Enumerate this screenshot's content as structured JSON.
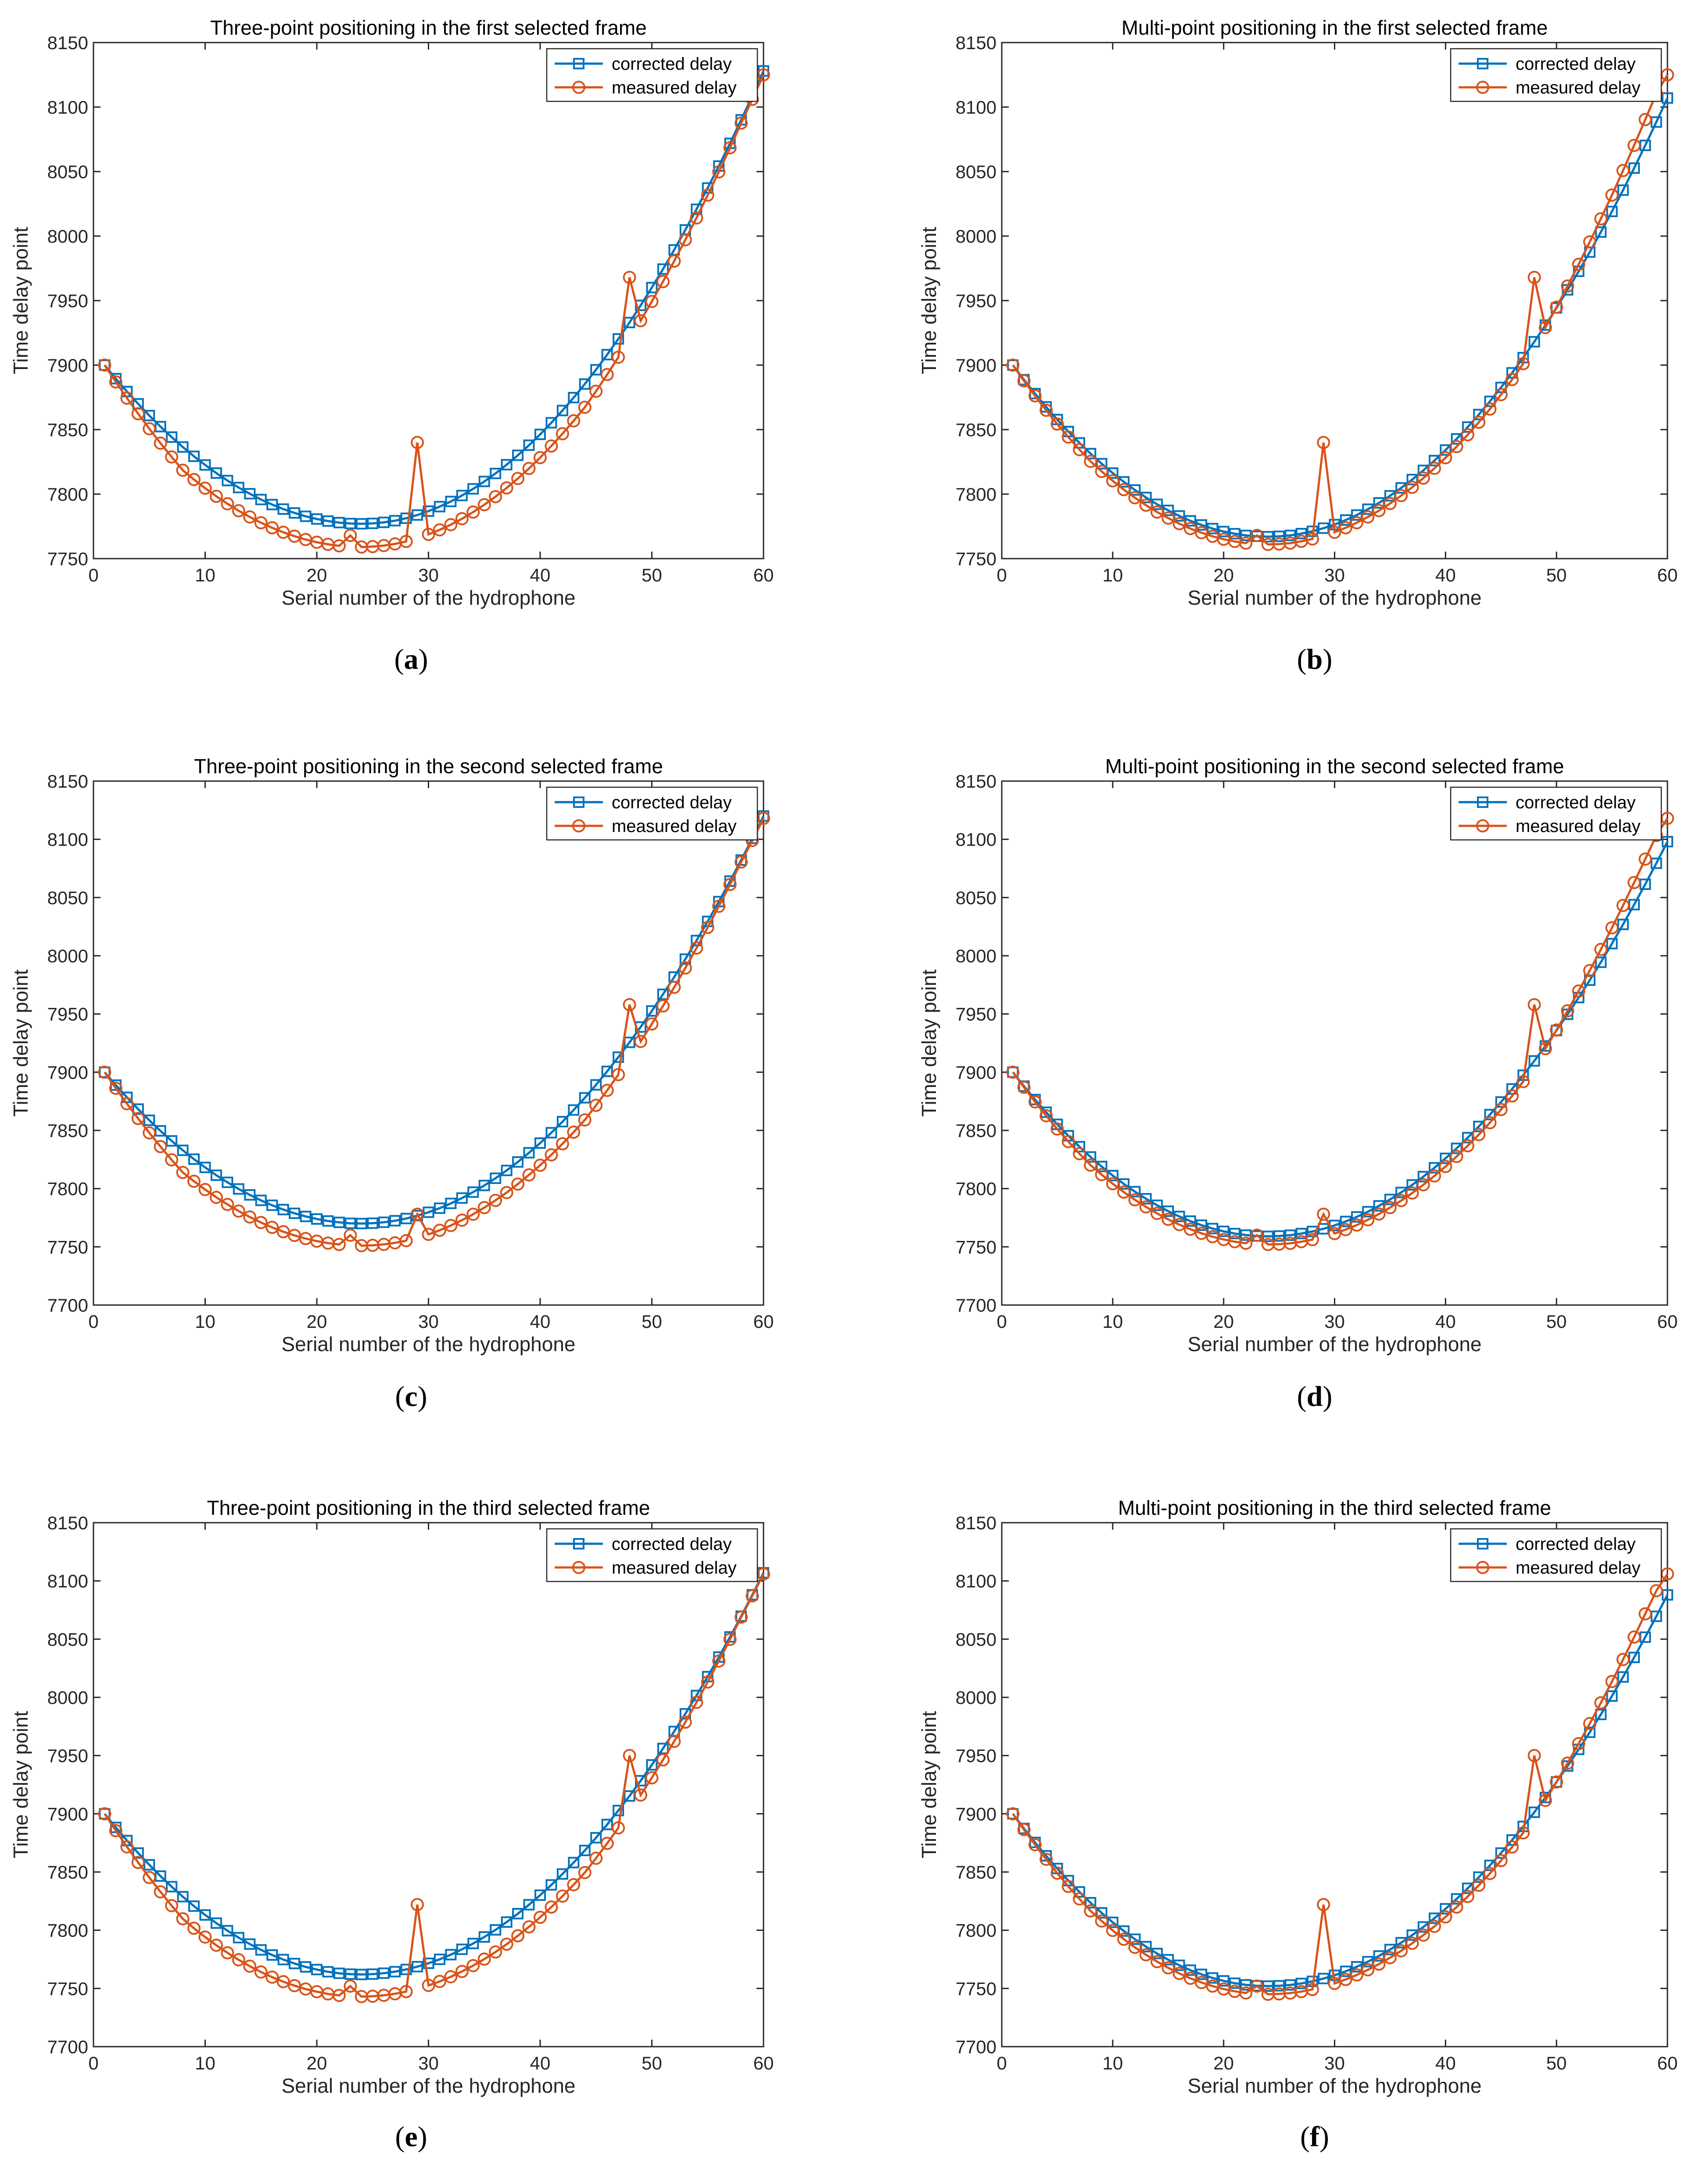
{
  "legend": {
    "corrected": "corrected delay",
    "measured": "measured delay"
  },
  "colors": {
    "corrected": "#0072BD",
    "measured": "#D95319",
    "axis": "#262626",
    "background": "#ffffff"
  },
  "captions": [
    {
      "letter": "a"
    },
    {
      "letter": "b"
    },
    {
      "letter": "c"
    },
    {
      "letter": "d"
    },
    {
      "letter": "e"
    },
    {
      "letter": "f"
    }
  ],
  "chart_data": [
    {
      "type": "line",
      "title": "Three-point positioning in the first selected frame",
      "xlabel": "Serial number of the hydrophone",
      "ylabel": "Time delay point",
      "xlim": [
        0,
        60
      ],
      "ylim": [
        7750,
        8150
      ],
      "xticks": [
        0,
        10,
        20,
        30,
        40,
        50,
        60
      ],
      "yticks": [
        7750,
        7800,
        7850,
        7900,
        7950,
        8000,
        8050,
        8100,
        8150
      ],
      "grid": false,
      "legend_position": "top-right",
      "model": {
        "min_x": 24,
        "min_corrected": 7777,
        "top_corrected": 8128,
        "dev_measured": -18,
        "top_measured": 8125,
        "spikes": [
          [
            29,
            7840
          ],
          [
            48,
            7968
          ],
          [
            23,
            7768
          ]
        ]
      }
    },
    {
      "type": "line",
      "title": "Multi-point positioning in the first selected frame",
      "xlabel": "Serial number of the hydrophone",
      "ylabel": "Time delay point",
      "xlim": [
        0,
        60
      ],
      "ylim": [
        7750,
        8150
      ],
      "xticks": [
        0,
        10,
        20,
        30,
        40,
        50,
        60
      ],
      "yticks": [
        7750,
        7800,
        7850,
        7900,
        7950,
        8000,
        8050,
        8100,
        8150
      ],
      "grid": false,
      "legend_position": "top-right",
      "model": {
        "min_x": 24,
        "min_corrected": 7767,
        "top_corrected": 8107,
        "dev_measured": -6,
        "top_measured": 8125,
        "spikes": [
          [
            29,
            7840
          ],
          [
            48,
            7968
          ],
          [
            23,
            7768
          ]
        ]
      }
    },
    {
      "type": "line",
      "title": "Three-point positioning in the second selected frame",
      "xlabel": "Serial number of the hydrophone",
      "ylabel": "Time delay point",
      "xlim": [
        0,
        60
      ],
      "ylim": [
        7700,
        8150
      ],
      "xticks": [
        0,
        10,
        20,
        30,
        40,
        50,
        60
      ],
      "yticks": [
        7700,
        7750,
        7800,
        7850,
        7900,
        7950,
        8000,
        8050,
        8100,
        8150
      ],
      "grid": false,
      "legend_position": "top-right",
      "model": {
        "min_x": 24,
        "min_corrected": 7770,
        "top_corrected": 8120,
        "dev_measured": -19,
        "top_measured": 8118,
        "spikes": [
          [
            29,
            7778
          ],
          [
            48,
            7958
          ],
          [
            23,
            7760
          ]
        ]
      }
    },
    {
      "type": "line",
      "title": "Multi-point positioning in the second selected frame",
      "xlabel": "Serial number of the hydrophone",
      "ylabel": "Time delay point",
      "xlim": [
        0,
        60
      ],
      "ylim": [
        7700,
        8150
      ],
      "xticks": [
        0,
        10,
        20,
        30,
        40,
        50,
        60
      ],
      "yticks": [
        7700,
        7750,
        7800,
        7850,
        7900,
        7950,
        8000,
        8050,
        8100,
        8150
      ],
      "grid": false,
      "legend_position": "top-right",
      "model": {
        "min_x": 24,
        "min_corrected": 7759,
        "top_corrected": 8098,
        "dev_measured": -7,
        "top_measured": 8118,
        "spikes": [
          [
            29,
            7778
          ],
          [
            48,
            7958
          ],
          [
            23,
            7760
          ]
        ]
      }
    },
    {
      "type": "line",
      "title": "Three-point positioning in the third selected frame",
      "xlabel": "Serial number of the hydrophone",
      "ylabel": "Time delay point",
      "xlim": [
        0,
        60
      ],
      "ylim": [
        7700,
        8150
      ],
      "xticks": [
        0,
        10,
        20,
        30,
        40,
        50,
        60
      ],
      "yticks": [
        7700,
        7750,
        7800,
        7850,
        7900,
        7950,
        8000,
        8050,
        8100,
        8150
      ],
      "grid": false,
      "legend_position": "top-right",
      "model": {
        "min_x": 24,
        "min_corrected": 7762,
        "top_corrected": 8107,
        "dev_measured": -19,
        "top_measured": 8106,
        "spikes": [
          [
            29,
            7822
          ],
          [
            48,
            7950
          ],
          [
            23,
            7752
          ]
        ]
      }
    },
    {
      "type": "line",
      "title": "Multi-point positioning in the third selected frame",
      "xlabel": "Serial number of the hydrophone",
      "ylabel": "Time delay point",
      "xlim": [
        0,
        60
      ],
      "ylim": [
        7700,
        8150
      ],
      "xticks": [
        0,
        10,
        20,
        30,
        40,
        50,
        60
      ],
      "yticks": [
        7700,
        7750,
        7800,
        7850,
        7900,
        7950,
        8000,
        8050,
        8100,
        8150
      ],
      "grid": false,
      "legend_position": "top-right",
      "model": {
        "min_x": 24,
        "min_corrected": 7752,
        "top_corrected": 8088,
        "dev_measured": -7,
        "top_measured": 8106,
        "spikes": [
          [
            29,
            7822
          ],
          [
            48,
            7950
          ],
          [
            23,
            7752
          ]
        ]
      }
    }
  ]
}
